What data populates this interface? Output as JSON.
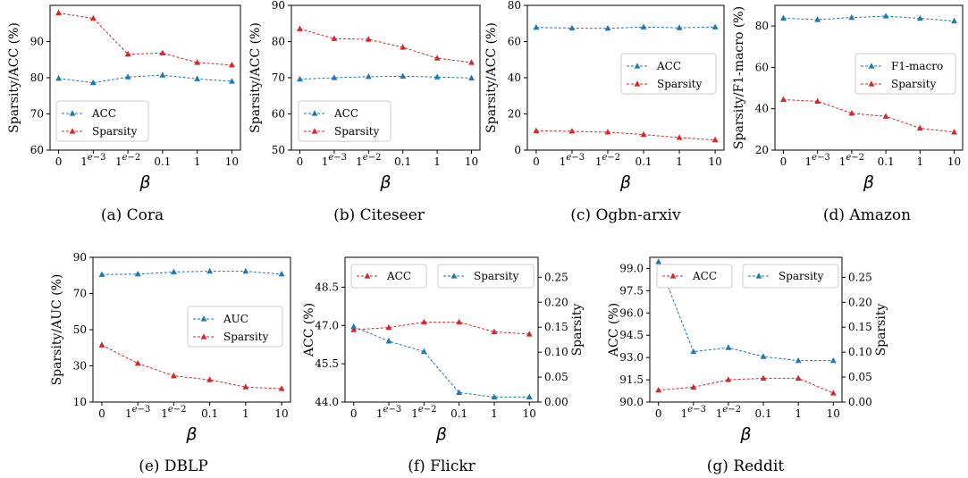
{
  "colors": {
    "acc": "#1f77b4",
    "sparsity": "#d62728"
  },
  "chart_data": [
    {
      "type": "line",
      "caption": "(a) Cora",
      "categories": [
        "0",
        "1e-3",
        "1e-2",
        "0.1",
        "1",
        "10"
      ],
      "xlabel": "β",
      "ylabel": "Sparsity/ACC (%)",
      "ylim": [
        60,
        100
      ],
      "yticks": [
        60,
        70,
        80,
        90
      ],
      "legend": "lower-left",
      "series": [
        {
          "name": "ACC",
          "color": "#1f77b4",
          "values": [
            79.8,
            78.6,
            80.2,
            80.7,
            79.7,
            79.0
          ]
        },
        {
          "name": "Sparsity",
          "color": "#d62728",
          "values": [
            97.9,
            96.4,
            86.5,
            86.8,
            84.2,
            83.5
          ]
        }
      ]
    },
    {
      "type": "line",
      "caption": "(b) Citeseer",
      "categories": [
        "0",
        "1e-3",
        "1e-2",
        "0.1",
        "1",
        "10"
      ],
      "xlabel": "β",
      "ylabel": "Sparsity/ACC (%)",
      "ylim": [
        50,
        90
      ],
      "yticks": [
        50,
        60,
        70,
        80,
        90
      ],
      "legend": "lower-right",
      "series": [
        {
          "name": "ACC",
          "color": "#1f77b4",
          "values": [
            69.6,
            70.0,
            70.3,
            70.4,
            70.2,
            69.9
          ]
        },
        {
          "name": "Sparsity",
          "color": "#d62728",
          "values": [
            83.5,
            80.8,
            80.6,
            78.4,
            75.4,
            74.2
          ]
        }
      ]
    },
    {
      "type": "line",
      "caption": "(c) Ogbn-arxiv",
      "categories": [
        "0",
        "1e-3",
        "1e-2",
        "0.1",
        "1",
        "10"
      ],
      "xlabel": "β",
      "ylabel": "Sparsity/ACC (%)",
      "ylim": [
        0,
        80
      ],
      "yticks": [
        0,
        20,
        40,
        60,
        80
      ],
      "legend": "center-right",
      "series": [
        {
          "name": "ACC",
          "color": "#1f77b4",
          "values": [
            67.8,
            67.4,
            67.3,
            68.0,
            67.6,
            68.0
          ]
        },
        {
          "name": "Sparsity",
          "color": "#d62728",
          "values": [
            10.6,
            10.4,
            9.9,
            8.6,
            6.9,
            5.6
          ]
        }
      ]
    },
    {
      "type": "line",
      "caption": "(d) Amazon",
      "categories": [
        "0",
        "1e-3",
        "1e-2",
        "0.1",
        "1",
        "10"
      ],
      "xlabel": "β",
      "ylabel": "Sparsity/F1-macro (%)",
      "ylim": [
        20,
        90
      ],
      "yticks": [
        20,
        40,
        60,
        80
      ],
      "legend": "center-right",
      "series": [
        {
          "name": "F1-macro",
          "color": "#1f77b4",
          "values": [
            83.8,
            83.1,
            84.1,
            84.8,
            83.7,
            82.4
          ]
        },
        {
          "name": "Sparsity",
          "color": "#d62728",
          "values": [
            44.4,
            43.6,
            37.8,
            36.3,
            30.6,
            28.7
          ]
        }
      ]
    },
    {
      "type": "line",
      "caption": "(e) DBLP",
      "categories": [
        "0",
        "1e-3",
        "1e-2",
        "0.1",
        "1",
        "10"
      ],
      "xlabel": "β",
      "ylabel": "Sparsity/AUC (%)",
      "ylim": [
        10,
        90
      ],
      "yticks": [
        10,
        30,
        50,
        70,
        90
      ],
      "legend": "center-right",
      "series": [
        {
          "name": "AUC",
          "color": "#1f77b4",
          "values": [
            80.5,
            80.7,
            81.9,
            82.3,
            82.3,
            80.7
          ]
        },
        {
          "name": "Sparsity",
          "color": "#d62728",
          "values": [
            41.5,
            31.4,
            24.5,
            22.3,
            18.3,
            17.4
          ]
        }
      ]
    },
    {
      "type": "line",
      "caption": "(f) Flickr",
      "categories": [
        "0",
        "1e-3",
        "1e-2",
        "0.1",
        "1",
        "10"
      ],
      "xlabel": "β",
      "ylabel": "ACC (%)",
      "ylabel_right": "Sparsity",
      "ylim": [
        44.0,
        49.67
      ],
      "yticks": [
        44.0,
        45.5,
        47.0,
        48.5
      ],
      "ytick_labels": [
        "44.0",
        "45.5",
        "47.0",
        "48.5"
      ],
      "ylim_right": [
        0.0,
        0.29
      ],
      "yticks_right": [
        0.0,
        0.05,
        0.1,
        0.15,
        0.2,
        0.25
      ],
      "ytick_labels_right": [
        "0.00",
        "0.05",
        "0.10",
        "0.15",
        "0.20",
        "0.25"
      ],
      "legend": "top",
      "series": [
        {
          "name": "ACC",
          "color": "#d62728",
          "axis": "left",
          "values": [
            46.83,
            46.92,
            47.13,
            47.13,
            46.75,
            46.66
          ]
        },
        {
          "name": "Sparsity",
          "color": "#1f77b4",
          "axis": "right",
          "values": [
            0.151,
            0.122,
            0.101,
            0.019,
            0.01,
            0.01
          ]
        }
      ]
    },
    {
      "type": "line",
      "caption": "(g) Reddit",
      "categories": [
        "0",
        "1e-3",
        "1e-2",
        "0.1",
        "1",
        "10"
      ],
      "xlabel": "β",
      "ylabel": "ACC (%)",
      "ylabel_right": "Sparsity",
      "ylim": [
        90.0,
        99.75
      ],
      "yticks": [
        90.0,
        91.5,
        93.0,
        94.5,
        96.0,
        97.5,
        99.0
      ],
      "ytick_labels": [
        "90.0",
        "91.5",
        "93.0",
        "94.5",
        "96.0",
        "97.5",
        "99.0"
      ],
      "ylim_right": [
        0.0,
        0.29
      ],
      "yticks_right": [
        0.0,
        0.05,
        0.1,
        0.15,
        0.2,
        0.25
      ],
      "ytick_labels_right": [
        "0.00",
        "0.05",
        "0.10",
        "0.15",
        "0.20",
        "0.25"
      ],
      "legend": "top",
      "series": [
        {
          "name": "ACC",
          "color": "#d62728",
          "axis": "left",
          "values": [
            90.8,
            91.0,
            91.5,
            91.6,
            91.6,
            90.6
          ]
        },
        {
          "name": "Sparsity",
          "color": "#1f77b4",
          "axis": "right",
          "values": [
            0.281,
            0.101,
            0.109,
            0.091,
            0.083,
            0.083
          ]
        }
      ]
    }
  ]
}
